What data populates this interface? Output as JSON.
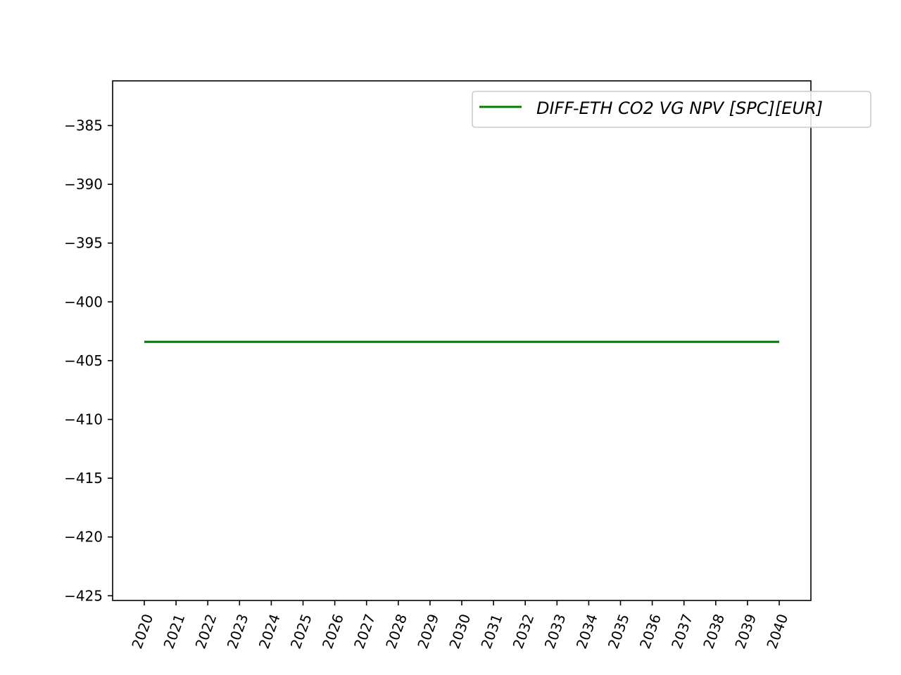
{
  "chart_data": {
    "type": "line",
    "title": "",
    "xlabel": "",
    "ylabel": "",
    "x": [
      "2020",
      "2021",
      "2022",
      "2023",
      "2024",
      "2025",
      "2026",
      "2027",
      "2028",
      "2029",
      "2030",
      "2031",
      "2032",
      "2033",
      "2034",
      "2035",
      "2036",
      "2037",
      "2038",
      "2039",
      "2040"
    ],
    "series": [
      {
        "name": "DIFF-ETH CO2 VG NPV [SPC][EUR]",
        "color": "#008000",
        "values": [
          -403.4,
          -403.4,
          -403.4,
          -403.4,
          -403.4,
          -403.4,
          -403.4,
          -403.4,
          -403.4,
          -403.4,
          -403.4,
          -403.4,
          -403.4,
          -403.4,
          -403.4,
          -403.4,
          -403.4,
          -403.4,
          -403.4,
          -403.4,
          -403.4
        ]
      }
    ],
    "ylim": [
      -425.4,
      -381.2
    ],
    "yticks": [
      -385,
      -390,
      -395,
      -400,
      -405,
      -410,
      -415,
      -420,
      -425
    ],
    "ytick_labels": [
      "−385",
      "−390",
      "−395",
      "−400",
      "−405",
      "−410",
      "−415",
      "−420",
      "−425"
    ],
    "xtick_rotation_deg": -70,
    "grid": false,
    "legend_position": "top-right"
  }
}
